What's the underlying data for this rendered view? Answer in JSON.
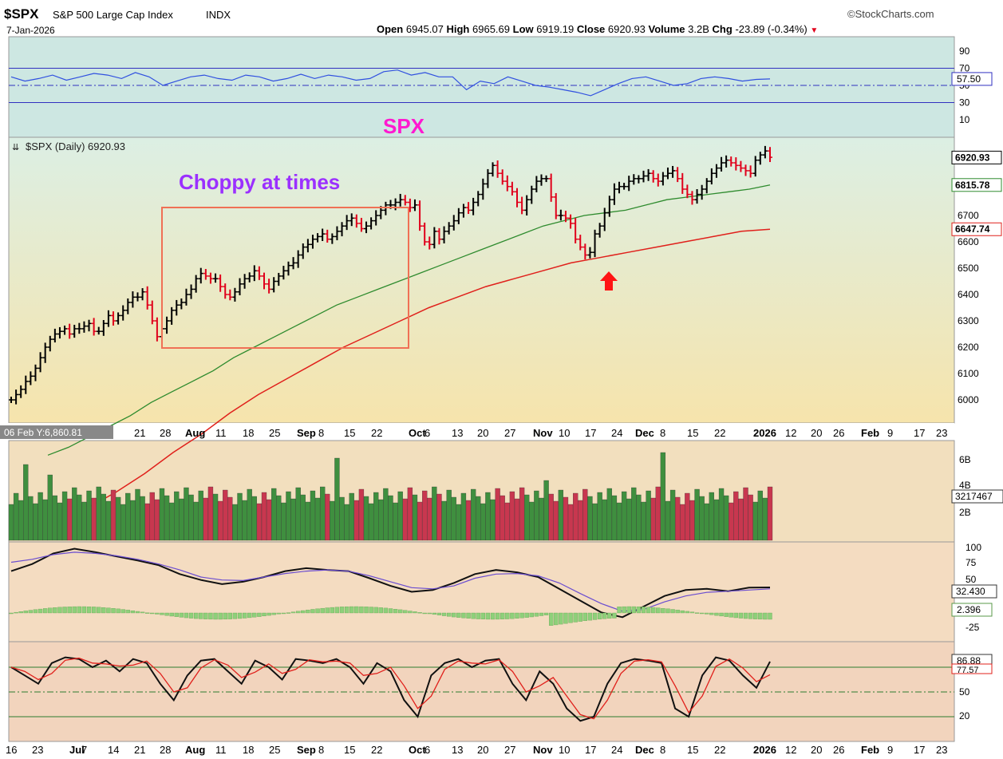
{
  "header": {
    "symbol": "$SPX",
    "name": "S&P 500 Large Cap Index",
    "exchange": "INDX",
    "date": "7-Jan-2026",
    "brand": "©StockCharts.com",
    "open_label": "Open",
    "open": "6945.07",
    "high_label": "High",
    "high": "6965.69",
    "low_label": "Low",
    "low": "6919.19",
    "close_label": "Close",
    "close": "6920.93",
    "volume_label": "Volume",
    "volume": "3.2B",
    "chg_label": "Chg",
    "chg": "-23.89 (-0.34%)",
    "chg_arrow": "▼"
  },
  "colors": {
    "up": "#000000",
    "down": "#e0001b",
    "ma50": "#2e8b2e",
    "ma200": "#e0201b",
    "annotation_title": "#ff19d0",
    "annotation_text": "#9b30ff",
    "box": "#f07055",
    "rsi_bg": "#cfe8e3",
    "price_bg_top": "#dff0e6",
    "price_bg_bottom": "#f5e6b0",
    "vol_up": "#3f8f3f",
    "vol_down": "#c8374f",
    "macd_bg": "#f4dcc0",
    "sto_bg": "#f2d5bf"
  },
  "annotations": {
    "spx_title": "SPX",
    "choppy": "Choppy at times"
  },
  "x_axis": {
    "top_tooltip": "06 Feb Y:6,860.81",
    "ticks": [
      {
        "label": "16",
        "x": 7,
        "bold": false
      },
      {
        "label": "23",
        "x": 40,
        "bold": false
      },
      {
        "label": "Jul",
        "x": 87,
        "bold": true
      },
      {
        "label": "7",
        "x": 102,
        "bold": false
      },
      {
        "label": "14",
        "x": 135,
        "bold": false
      },
      {
        "label": "21",
        "x": 168,
        "bold": false
      },
      {
        "label": "28",
        "x": 200,
        "bold": false
      },
      {
        "label": "Aug",
        "x": 232,
        "bold": true
      },
      {
        "label": "11",
        "x": 270,
        "bold": false
      },
      {
        "label": "18",
        "x": 304,
        "bold": false
      },
      {
        "label": "25",
        "x": 337,
        "bold": false
      },
      {
        "label": "Sep",
        "x": 372,
        "bold": true
      },
      {
        "label": "8",
        "x": 399,
        "bold": false
      },
      {
        "label": "15",
        "x": 431,
        "bold": false
      },
      {
        "label": "22",
        "x": 465,
        "bold": false
      },
      {
        "label": "Oct",
        "x": 512,
        "bold": true
      },
      {
        "label": "6",
        "x": 532,
        "bold": false
      },
      {
        "label": "13",
        "x": 566,
        "bold": false
      },
      {
        "label": "20",
        "x": 598,
        "bold": false
      },
      {
        "label": "27",
        "x": 632,
        "bold": false
      },
      {
        "label": "Nov",
        "x": 668,
        "bold": true
      },
      {
        "label": "10",
        "x": 700,
        "bold": false
      },
      {
        "label": "17",
        "x": 733,
        "bold": false
      },
      {
        "label": "24",
        "x": 766,
        "bold": false
      },
      {
        "label": "Dec",
        "x": 796,
        "bold": true
      },
      {
        "label": "8",
        "x": 827,
        "bold": false
      },
      {
        "label": "15",
        "x": 861,
        "bold": false
      },
      {
        "label": "22",
        "x": 895,
        "bold": false
      },
      {
        "label": "2026",
        "x": 944,
        "bold": true
      },
      {
        "label": "12",
        "x": 984,
        "bold": false
      },
      {
        "label": "20",
        "x": 1016,
        "bold": false
      },
      {
        "label": "26",
        "x": 1044,
        "bold": false
      },
      {
        "label": "Feb",
        "x": 1079,
        "bold": true
      },
      {
        "label": "9",
        "x": 1112,
        "bold": false
      },
      {
        "label": "17",
        "x": 1145,
        "bold": false
      },
      {
        "label": "23",
        "x": 1173,
        "bold": false
      }
    ]
  },
  "chart_data": {
    "type": "line",
    "title": "$SPX (Daily) 6920.93",
    "price_scale": {
      "min": 5900,
      "max": 7000,
      "ticks": [
        6000,
        6100,
        6200,
        6300,
        6400,
        6500,
        6600,
        6700,
        6800,
        6900
      ]
    },
    "price_series": [
      {
        "name": "$SPX",
        "values": [
          6000,
          6020,
          6040,
          6070,
          6090,
          6120,
          6160,
          6200,
          6230,
          6250,
          6260,
          6270,
          6250,
          6270,
          6270,
          6280,
          6290,
          6260,
          6260,
          6290,
          6320,
          6300,
          6320,
          6340,
          6370,
          6390,
          6390,
          6410,
          6360,
          6300,
          6240,
          6270,
          6300,
          6340,
          6360,
          6370,
          6400,
          6420,
          6460,
          6480,
          6470,
          6460,
          6460,
          6430,
          6400,
          6390,
          6410,
          6440,
          6460,
          6470,
          6490,
          6470,
          6440,
          6420,
          6450,
          6470,
          6490,
          6510,
          6520,
          6550,
          6580,
          6590,
          6610,
          6620,
          6630,
          6610,
          6620,
          6640,
          6660,
          6680,
          6690,
          6670,
          6650,
          6660,
          6680,
          6700,
          6720,
          6740,
          6740,
          6750,
          6760,
          6750,
          6730,
          6740,
          6660,
          6600,
          6590,
          6640,
          6610,
          6640,
          6660,
          6680,
          6710,
          6730,
          6720,
          6750,
          6780,
          6820,
          6860,
          6890,
          6860,
          6830,
          6810,
          6790,
          6750,
          6720,
          6760,
          6800,
          6830,
          6840,
          6840,
          6770,
          6700,
          6700,
          6690,
          6670,
          6610,
          6580,
          6550,
          6560,
          6630,
          6660,
          6710,
          6760,
          6800,
          6810,
          6810,
          6830,
          6840,
          6840,
          6850,
          6860,
          6840,
          6830,
          6850,
          6860,
          6870,
          6840,
          6800,
          6780,
          6760,
          6780,
          6800,
          6830,
          6860,
          6880,
          6900,
          6910,
          6900,
          6890,
          6880,
          6870,
          6860,
          6910,
          6930,
          6945,
          6920.93
        ]
      },
      {
        "name": "MA50",
        "label": "6815.78",
        "values": [
          5790,
          5820,
          5860,
          5900,
          5940,
          5990,
          6030,
          6070,
          6110,
          6160,
          6200,
          6240,
          6280,
          6320,
          6360,
          6390,
          6420,
          6450,
          6480,
          6510,
          6540,
          6570,
          6600,
          6630,
          6660,
          6680,
          6700,
          6710,
          6720,
          6740,
          6760,
          6770,
          6780,
          6790,
          6800,
          6815.78
        ]
      },
      {
        "name": "MA200",
        "label": "6647.74",
        "values": [
          5590,
          5650,
          5720,
          5800,
          5870,
          5950,
          6020,
          6080,
          6140,
          6200,
          6250,
          6300,
          6350,
          6390,
          6430,
          6460,
          6490,
          6520,
          6540,
          6560,
          6580,
          6600,
          6620,
          6640,
          6647.74
        ]
      }
    ],
    "price_labels": {
      "close": "6920.93",
      "ma50": "6815.78",
      "ma200": "6647.74"
    },
    "rsi": {
      "name": "RSI",
      "current": "57.50",
      "ticks": [
        "90",
        "70",
        "50",
        "30",
        "10"
      ],
      "values": [
        60,
        55,
        58,
        62,
        56,
        60,
        64,
        62,
        58,
        65,
        60,
        50,
        55,
        60,
        62,
        58,
        56,
        62,
        60,
        55,
        58,
        63,
        58,
        62,
        60,
        56,
        58,
        66,
        68,
        62,
        65,
        60,
        60,
        45,
        55,
        52,
        60,
        55,
        50,
        48,
        45,
        42,
        38,
        45,
        52,
        58,
        60,
        55,
        50,
        52,
        58,
        60,
        58,
        55,
        57,
        57.5
      ]
    },
    "volume": {
      "name": "Volume",
      "current": "3217467",
      "ticks": [
        "6B",
        "4B",
        "2B"
      ]
    },
    "macd": {
      "name": "MACD",
      "current": "32.430",
      "hist": "2.396",
      "ticks": [
        "100",
        "75",
        "50",
        "-25"
      ]
    },
    "stochastic": {
      "name": "Slow Stochastic",
      "current_k": "86.88",
      "current_d": "77.57",
      "ticks": [
        "50",
        "20"
      ]
    }
  }
}
